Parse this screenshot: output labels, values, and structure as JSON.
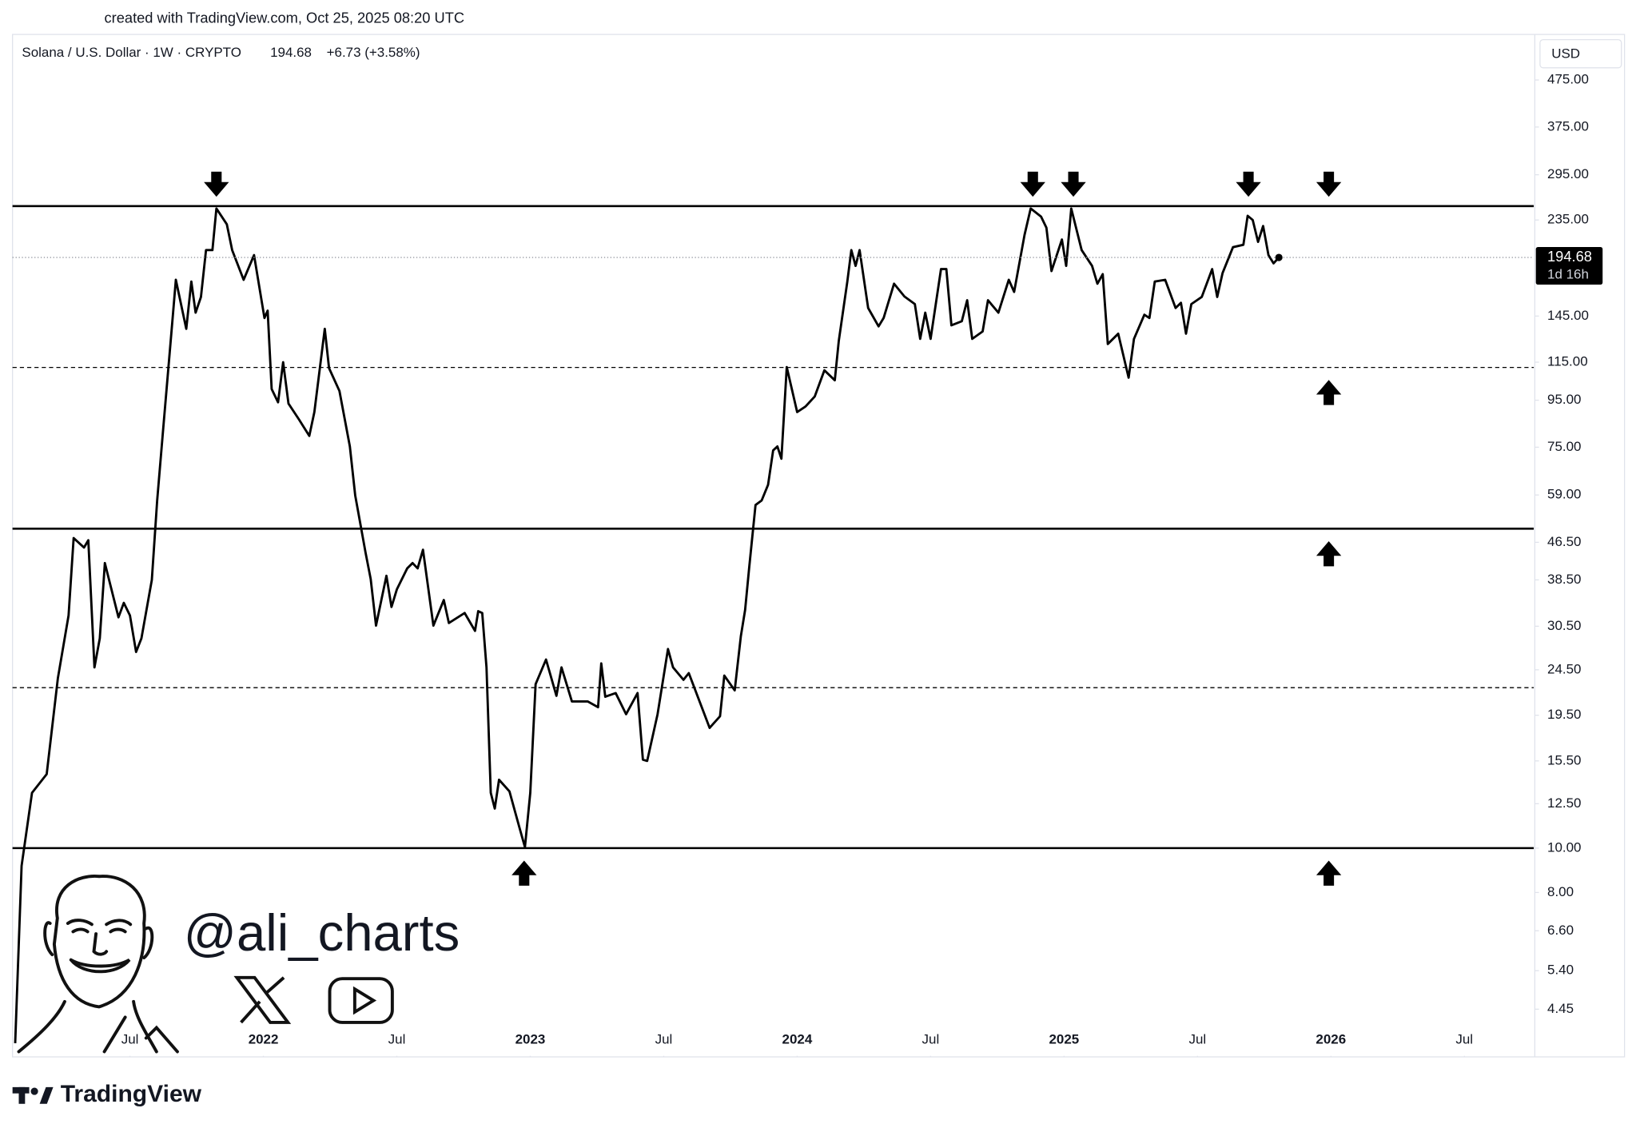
{
  "chart_data": {
    "type": "line",
    "watermark_top": "created with TradingView.com, Oct 25, 2025 08:20 UTC",
    "symbol": "Solana / U.S. Dollar · 1W · CRYPTO",
    "change": "+6.73 (+3.58%)",
    "currency": "USD",
    "countdown": "1d 16h",
    "author": "@ali_charts",
    "brand": "TradingView",
    "log_scale": true,
    "grid": false,
    "xlim": [
      2021.06,
      2026.76
    ],
    "ylim": [
      3.52,
      591
    ],
    "xticks": [
      {
        "value": 2021.5,
        "label": "Jul"
      },
      2022,
      {
        "value": 2022.5,
        "label": "Jul"
      },
      2023,
      {
        "value": 2023.5,
        "label": "Jul"
      },
      2024,
      {
        "value": 2024.5,
        "label": "Jul"
      },
      2025,
      {
        "value": 2025.5,
        "label": "Jul"
      },
      2026,
      {
        "value": 2026.5,
        "label": "Jul"
      }
    ],
    "yticks": [
      {
        "value": 4.45,
        "label": "4.45"
      },
      {
        "value": 5.4,
        "label": "5.40"
      },
      {
        "value": 6.6,
        "label": "6.60"
      },
      {
        "value": 8,
        "label": "8.00"
      },
      {
        "value": 10,
        "label": "10.00"
      },
      {
        "value": 12.5,
        "label": "12.50"
      },
      {
        "value": 15.5,
        "label": "15.50"
      },
      {
        "value": 19.5,
        "label": "19.50"
      },
      {
        "value": 24.5,
        "label": "24.50"
      },
      {
        "value": 30.5,
        "label": "30.50"
      },
      {
        "value": 38.5,
        "label": "38.50"
      },
      {
        "value": 46.5,
        "label": "46.50"
      },
      {
        "value": 59,
        "label": "59.00"
      },
      {
        "value": 75,
        "label": "75.00"
      },
      {
        "value": 95,
        "label": "95.00"
      },
      {
        "value": 115,
        "label": "115.00"
      },
      {
        "value": 145,
        "label": "145.00"
      },
      {
        "value": 235,
        "label": "235.00"
      },
      {
        "value": 295,
        "label": "295.00"
      },
      {
        "value": 375,
        "label": "375.00"
      },
      {
        "value": 475,
        "label": "475.00"
      }
    ],
    "levels": [
      {
        "value": 252,
        "style": "solid"
      },
      {
        "value": 112,
        "style": "dashed"
      },
      {
        "value": 49.8,
        "style": "solid"
      },
      {
        "value": 22.4,
        "style": "dashed"
      },
      {
        "value": 10,
        "style": "solid"
      }
    ],
    "arrows": [
      {
        "x": 2021.824,
        "y": 252,
        "direction": "down"
      },
      {
        "x": 2024.883,
        "y": 252,
        "direction": "down"
      },
      {
        "x": 2025.035,
        "y": 252,
        "direction": "down"
      },
      {
        "x": 2025.691,
        "y": 252,
        "direction": "down"
      },
      {
        "x": 2025.992,
        "y": 252,
        "direction": "down"
      },
      {
        "x": 2022.977,
        "y": 10,
        "direction": "up"
      },
      {
        "x": 2025.992,
        "y": 112,
        "direction": "up"
      },
      {
        "x": 2025.992,
        "y": 49.8,
        "direction": "up"
      },
      {
        "x": 2025.992,
        "y": 10,
        "direction": "up"
      }
    ],
    "x": [
      2021.07,
      2021.094,
      2021.133,
      2021.188,
      2021.23,
      2021.27,
      2021.289,
      2021.328,
      2021.344,
      2021.367,
      2021.387,
      2021.406,
      2021.457,
      2021.477,
      2021.5,
      2021.523,
      2021.543,
      2021.582,
      2021.602,
      2021.625,
      2021.66,
      2021.672,
      2021.711,
      2021.73,
      2021.746,
      2021.766,
      2021.785,
      2021.809,
      2021.824,
      2021.863,
      2021.883,
      2021.926,
      2021.965,
      2022.004,
      2022.016,
      2022.031,
      2022.055,
      2022.074,
      2022.094,
      2022.133,
      2022.172,
      2022.191,
      2022.23,
      2022.246,
      2022.285,
      2022.324,
      2022.344,
      2022.383,
      2022.402,
      2022.422,
      2022.461,
      2022.48,
      2022.5,
      2022.539,
      2022.559,
      2022.578,
      2022.598,
      2022.637,
      2022.676,
      2022.695,
      2022.754,
      2022.793,
      2022.805,
      2022.82,
      2022.836,
      2022.852,
      2022.867,
      2022.883,
      2022.922,
      2022.961,
      2022.98,
      2023.0,
      2023.02,
      2023.059,
      2023.098,
      2023.117,
      2023.156,
      2023.215,
      2023.254,
      2023.266,
      2023.281,
      2023.32,
      2023.359,
      2023.402,
      2023.422,
      2023.438,
      2023.477,
      2023.516,
      2023.535,
      2023.574,
      2023.594,
      2023.672,
      2023.711,
      2023.727,
      2023.766,
      2023.789,
      2023.805,
      2023.82,
      2023.844,
      2023.867,
      2023.891,
      2023.91,
      2023.926,
      2023.941,
      2023.961,
      2024.0,
      2024.031,
      2024.066,
      2024.102,
      2024.141,
      2024.156,
      2024.188,
      2024.203,
      2024.219,
      2024.234,
      2024.266,
      2024.305,
      2024.324,
      2024.363,
      2024.402,
      2024.441,
      2024.461,
      2024.48,
      2024.5,
      2024.539,
      2024.559,
      2024.578,
      2024.617,
      2024.637,
      2024.656,
      2024.695,
      2024.715,
      2024.754,
      2024.793,
      2024.813,
      2024.852,
      2024.875,
      2024.914,
      2024.934,
      2024.953,
      2024.992,
      2025.008,
      2025.027,
      2025.066,
      2025.105,
      2025.125,
      2025.145,
      2025.164,
      2025.203,
      2025.242,
      2025.262,
      2025.301,
      2025.32,
      2025.34,
      2025.379,
      2025.418,
      2025.438,
      2025.457,
      2025.477,
      2025.516,
      2025.555,
      2025.574,
      2025.594,
      2025.633,
      2025.672,
      2025.688,
      2025.707,
      2025.727,
      2025.746,
      2025.766,
      2025.785,
      2025.805
    ],
    "series": [
      {
        "color": "#000000",
        "values": [
          3.75,
          9.15,
          13.2,
          14.5,
          23.5,
          32.2,
          47.5,
          45.3,
          47.0,
          24.8,
          28.7,
          41.9,
          31.9,
          34.3,
          32.2,
          26.8,
          28.7,
          38.5,
          57.4,
          82.8,
          143.6,
          174,
          136,
          172.5,
          147.5,
          159.6,
          202,
          202,
          249,
          230,
          202,
          174,
          197,
          143.6,
          149,
          100.5,
          94,
          115,
          93.4,
          86.3,
          79.4,
          89.5,
          136,
          111.6,
          99.5,
          75.3,
          58.9,
          44.1,
          38.7,
          30.6,
          39.3,
          33.6,
          36.7,
          40.8,
          41.9,
          40.8,
          44.8,
          30.6,
          34.8,
          31.0,
          32.6,
          29.8,
          32.9,
          32.6,
          24.8,
          13.2,
          12.2,
          14.1,
          13.3,
          11.0,
          10.05,
          13.2,
          22.8,
          25.8,
          21.5,
          24.8,
          20.9,
          20.9,
          20.3,
          25.3,
          21.4,
          21.8,
          19.6,
          21.8,
          15.6,
          15.5,
          19.6,
          27.2,
          24.8,
          23.3,
          24.1,
          18.3,
          19.4,
          23.8,
          22.1,
          29.0,
          33.1,
          40.8,
          56.1,
          57.4,
          62.1,
          73.8,
          75.3,
          70.8,
          112.2,
          89.5,
          92,
          96.8,
          110.4,
          105,
          128,
          172.5,
          202,
          186.6,
          202,
          151,
          137.7,
          143.6,
          170.6,
          160,
          154,
          129.3,
          147.5,
          129.3,
          183.6,
          183.6,
          138.4,
          141.3,
          157,
          129.3,
          134.2,
          157,
          147.5,
          174,
          163.7,
          218,
          249,
          239,
          226,
          181.8,
          213,
          186.6,
          249,
          202,
          186.6,
          170.6,
          179,
          126,
          132.7,
          106.4,
          129.3,
          146,
          143.6,
          172.5,
          174,
          151,
          155,
          132.7,
          154,
          159.6,
          183.6,
          159.6,
          180,
          205,
          207.5,
          240,
          235,
          210.5,
          228,
          197,
          189,
          194.68
        ]
      }
    ]
  }
}
